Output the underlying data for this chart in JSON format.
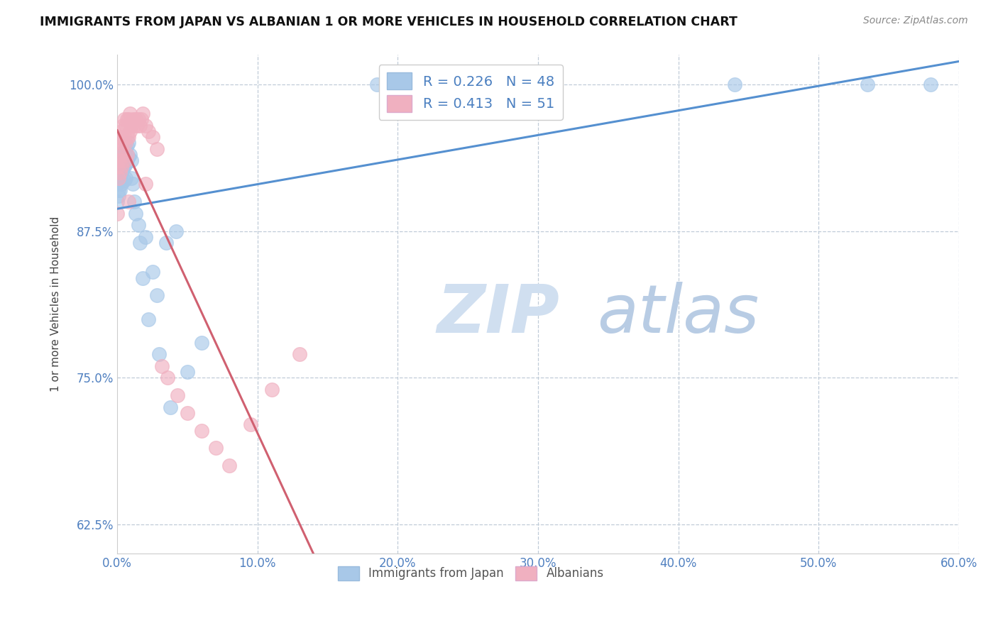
{
  "title": "IMMIGRANTS FROM JAPAN VS ALBANIAN 1 OR MORE VEHICLES IN HOUSEHOLD CORRELATION CHART",
  "source": "Source: ZipAtlas.com",
  "ylabel": "1 or more Vehicles in Household",
  "xmin": 0.0,
  "xmax": 0.6,
  "ymin": 60.0,
  "ymax": 102.5,
  "R_japan": 0.226,
  "N_japan": 48,
  "R_albanian": 0.413,
  "N_albanian": 51,
  "japan_color": "#a8c8e8",
  "albanian_color": "#f0b0c0",
  "japan_line_color": "#5590d0",
  "albanian_line_color": "#d06070",
  "legend_text_color": "#4a7fc0",
  "watermark_zip": "ZIP",
  "watermark_atlas": "atlas",
  "watermark_color_zip": "#d0dff0",
  "watermark_color_atlas": "#b8cce4",
  "japan_x": [
    0.0,
    0.0,
    0.001,
    0.001,
    0.001,
    0.002,
    0.002,
    0.002,
    0.003,
    0.003,
    0.003,
    0.004,
    0.004,
    0.005,
    0.005,
    0.005,
    0.006,
    0.006,
    0.006,
    0.007,
    0.007,
    0.008,
    0.008,
    0.009,
    0.01,
    0.01,
    0.011,
    0.012,
    0.013,
    0.015,
    0.016,
    0.018,
    0.02,
    0.022,
    0.025,
    0.028,
    0.03,
    0.035,
    0.038,
    0.042,
    0.05,
    0.06,
    0.185,
    0.215,
    0.25,
    0.44,
    0.535,
    0.58
  ],
  "japan_y": [
    91.5,
    90.0,
    92.0,
    91.0,
    90.5,
    93.0,
    92.0,
    91.0,
    93.5,
    92.5,
    91.5,
    94.0,
    92.8,
    94.2,
    93.0,
    91.8,
    94.5,
    93.2,
    92.0,
    94.8,
    93.5,
    95.0,
    93.8,
    94.0,
    93.5,
    92.0,
    91.5,
    90.0,
    89.0,
    88.0,
    86.5,
    83.5,
    87.0,
    80.0,
    84.0,
    82.0,
    77.0,
    86.5,
    72.5,
    87.5,
    75.5,
    78.0,
    100.0,
    100.0,
    99.5,
    100.0,
    100.0,
    100.0
  ],
  "albanian_x": [
    0.0,
    0.0,
    0.001,
    0.001,
    0.001,
    0.002,
    0.002,
    0.002,
    0.003,
    0.003,
    0.003,
    0.004,
    0.004,
    0.004,
    0.005,
    0.005,
    0.006,
    0.006,
    0.006,
    0.007,
    0.007,
    0.007,
    0.008,
    0.008,
    0.009,
    0.009,
    0.01,
    0.011,
    0.012,
    0.013,
    0.014,
    0.015,
    0.016,
    0.017,
    0.018,
    0.02,
    0.022,
    0.025,
    0.028,
    0.032,
    0.036,
    0.043,
    0.05,
    0.06,
    0.07,
    0.08,
    0.095,
    0.11,
    0.13,
    0.02,
    0.008
  ],
  "albanian_y": [
    93.0,
    89.0,
    95.0,
    93.5,
    92.0,
    95.5,
    94.0,
    92.5,
    96.0,
    94.5,
    93.0,
    96.5,
    95.0,
    93.5,
    97.0,
    95.5,
    96.5,
    95.0,
    93.5,
    97.0,
    95.5,
    94.0,
    97.0,
    95.5,
    97.5,
    96.0,
    96.5,
    97.0,
    96.5,
    97.0,
    96.5,
    97.0,
    96.5,
    97.0,
    97.5,
    96.5,
    96.0,
    95.5,
    94.5,
    76.0,
    75.0,
    73.5,
    72.0,
    70.5,
    69.0,
    67.5,
    71.0,
    74.0,
    77.0,
    91.5,
    90.0
  ]
}
